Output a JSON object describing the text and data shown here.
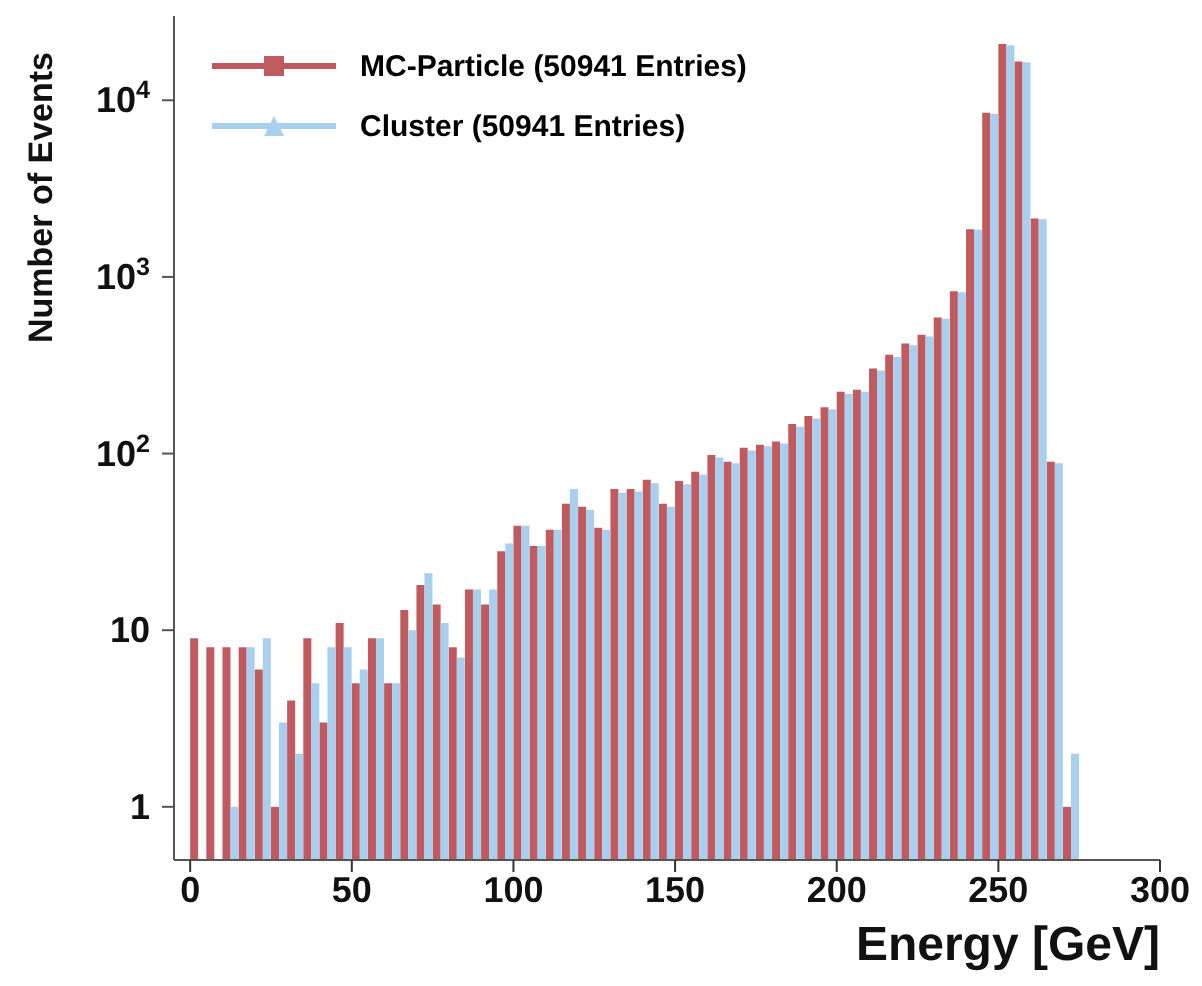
{
  "chart_data": {
    "type": "histogram",
    "xlabel": "Energy [GeV]",
    "ylabel": "Number of Events",
    "bins": [
      0,
      5,
      10,
      15,
      20,
      25,
      30,
      35,
      40,
      45,
      50,
      55,
      60,
      65,
      70,
      75,
      80,
      85,
      90,
      95,
      100,
      105,
      110,
      115,
      120,
      125,
      130,
      135,
      140,
      145,
      150,
      155,
      160,
      165,
      170,
      175,
      180,
      185,
      190,
      195,
      200,
      205,
      210,
      215,
      220,
      225,
      230,
      235,
      240,
      245,
      250,
      255,
      260,
      265,
      270,
      275
    ],
    "series": [
      {
        "name": "MC-Particle (50941 Entries)",
        "color": "#c05a5e",
        "values": [
          9,
          8,
          8,
          8,
          6,
          1,
          4,
          9,
          3,
          11,
          5,
          9,
          5,
          13,
          18,
          14,
          8,
          17,
          14,
          28,
          39,
          30,
          37,
          52,
          50,
          38,
          63,
          63,
          71,
          52,
          70,
          79,
          98,
          90,
          108,
          112,
          117,
          147,
          163,
          183,
          224,
          230,
          303,
          363,
          420,
          470,
          590,
          830,
          1860,
          8500,
          20800,
          16600,
          2140,
          90,
          1
        ]
      },
      {
        "name": "Cluster (50941 Entries)",
        "color": "#a8cfee",
        "values": [
          null,
          null,
          1,
          8,
          9,
          3,
          2,
          5,
          8,
          8,
          6,
          9,
          5,
          10,
          21,
          11,
          7,
          17,
          17,
          31,
          39,
          30,
          37,
          63,
          48,
          37,
          60,
          61,
          68,
          50,
          67,
          76,
          95,
          88,
          104,
          110,
          114,
          142,
          158,
          178,
          218,
          224,
          295,
          352,
          410,
          460,
          580,
          820,
          1850,
          8400,
          20500,
          16400,
          2120,
          88,
          2
        ]
      }
    ],
    "xlim": [
      -5,
      300
    ],
    "xticks": [
      0,
      50,
      100,
      150,
      200,
      250,
      300
    ],
    "ylim": [
      0.5,
      30000
    ],
    "yticks": [
      1,
      10,
      {
        "value": 100,
        "label": "10$^{2}$"
      },
      {
        "value": 1000,
        "label": "10$^{3}$"
      },
      {
        "value": 10000,
        "label": "10$^{4}$"
      }
    ],
    "log": true,
    "grid": false,
    "legend": "top left"
  }
}
